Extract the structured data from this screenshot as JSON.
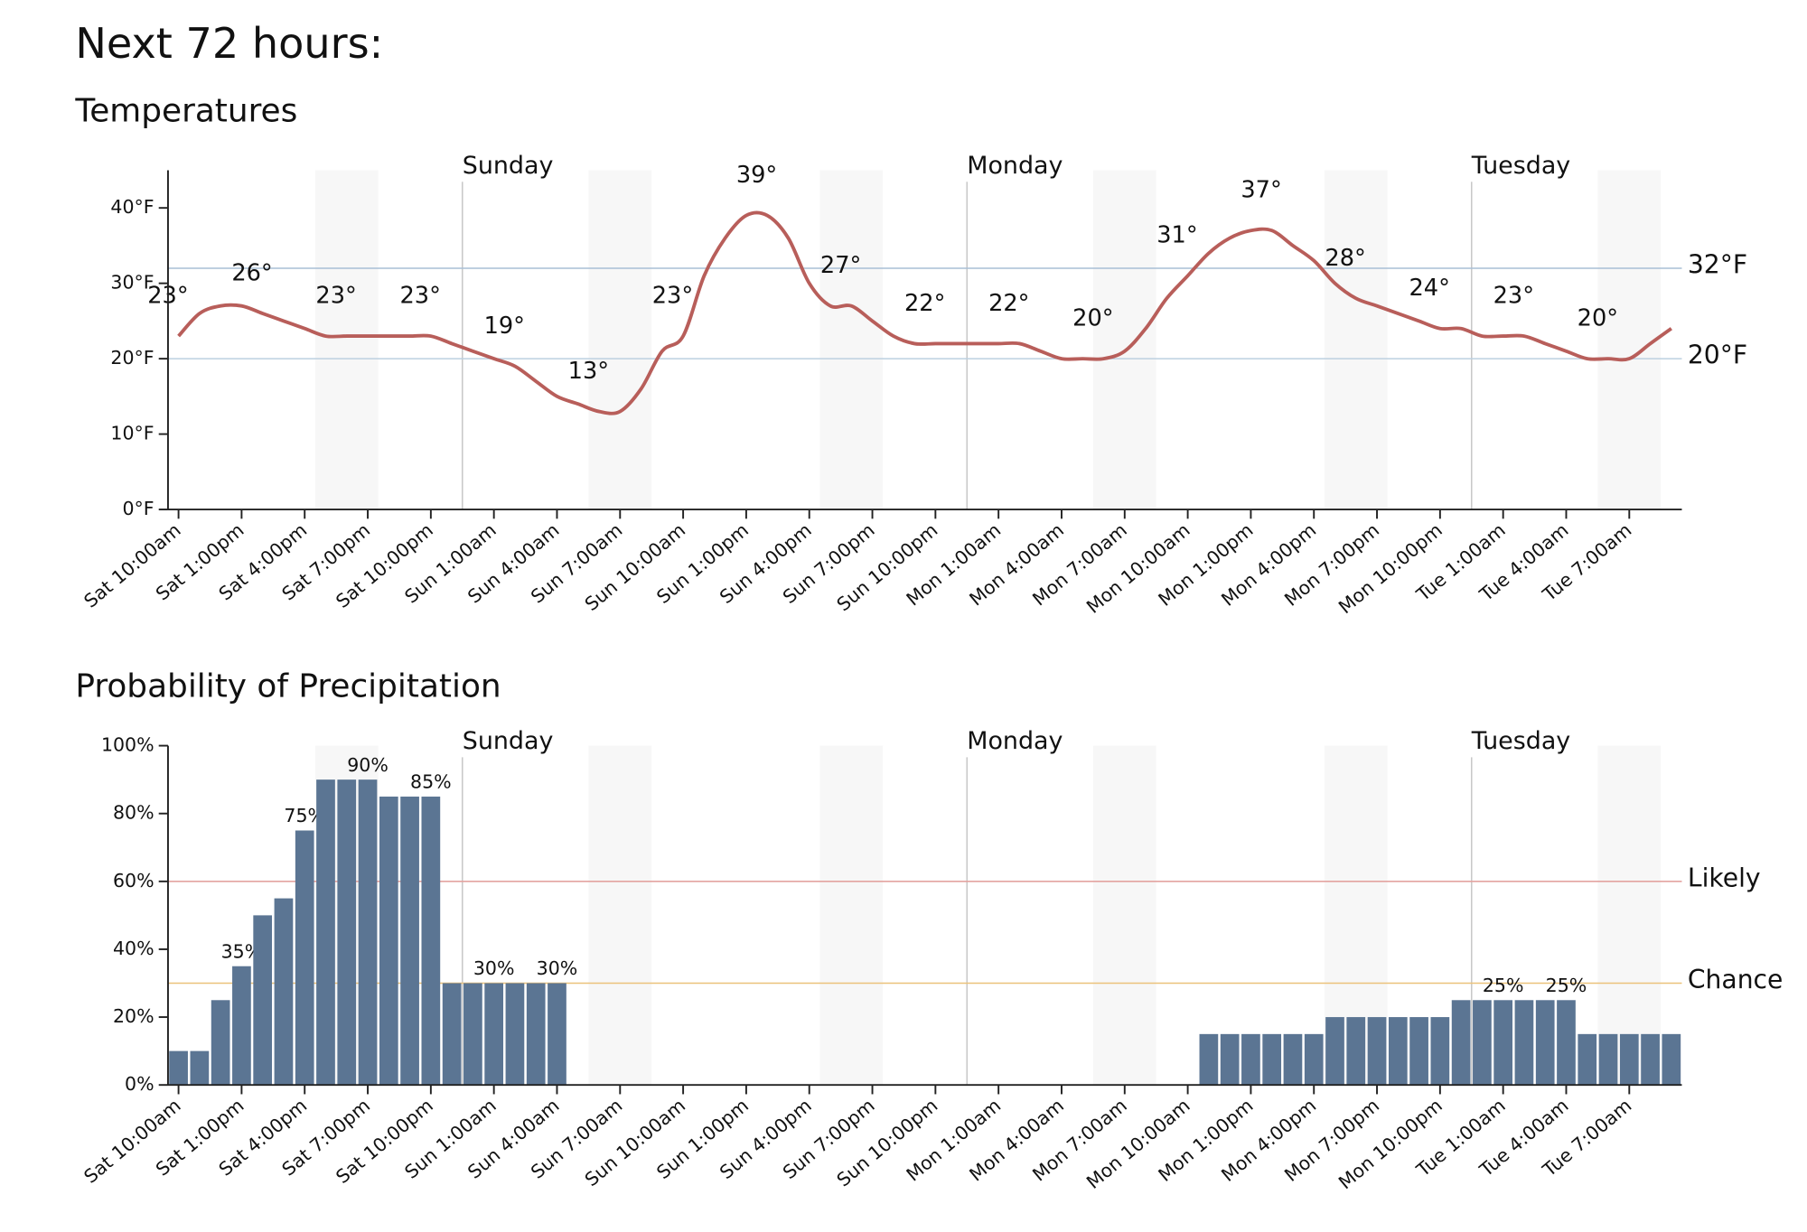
{
  "heading": "Next 72 hours:",
  "chart_data": [
    {
      "type": "line",
      "title": "Temperatures",
      "categories": [
        "Sat 10:00am",
        null,
        null,
        "Sat 1:00pm",
        null,
        null,
        "Sat 4:00pm",
        null,
        null,
        "Sat 7:00pm",
        null,
        null,
        "Sat 10:00pm",
        null,
        null,
        "Sun 1:00am",
        null,
        null,
        "Sun 4:00am",
        null,
        null,
        "Sun 7:00am",
        null,
        null,
        "Sun 10:00am",
        null,
        null,
        "Sun 1:00pm",
        null,
        null,
        "Sun 4:00pm",
        null,
        null,
        "Sun 7:00pm",
        null,
        null,
        "Sun 10:00pm",
        null,
        null,
        "Mon 1:00am",
        null,
        null,
        "Mon 4:00am",
        null,
        null,
        "Mon 7:00am",
        null,
        null,
        "Mon 10:00am",
        null,
        null,
        "Mon 1:00pm",
        null,
        null,
        "Mon 4:00pm",
        null,
        null,
        "Mon 7:00pm",
        null,
        null,
        "Mon 10:00pm",
        null,
        null,
        "Tue 1:00am",
        null,
        null,
        "Tue 4:00am",
        null,
        null,
        "Tue 7:00am",
        null,
        null
      ],
      "values": [
        23,
        26,
        27,
        27,
        26,
        25,
        24,
        23,
        23,
        23,
        23,
        23,
        23,
        22,
        21,
        20,
        19,
        17,
        15,
        14,
        13,
        13,
        16,
        21,
        23,
        31,
        36,
        39,
        39,
        36,
        30,
        27,
        27,
        25,
        23,
        22,
        22,
        22,
        22,
        22,
        22,
        21,
        20,
        20,
        20,
        21,
        24,
        28,
        31,
        34,
        36,
        37,
        37,
        35,
        33,
        30,
        28,
        27,
        26,
        25,
        24,
        24,
        23,
        23,
        23,
        22,
        21,
        20,
        20,
        20,
        22,
        24
      ],
      "value_labels": [
        "23°",
        null,
        null,
        null,
        "26°",
        null,
        null,
        null,
        "23°",
        null,
        null,
        null,
        "23°",
        null,
        null,
        null,
        "19°",
        null,
        null,
        null,
        "13°",
        null,
        null,
        null,
        "23°",
        null,
        null,
        null,
        "39°",
        null,
        null,
        null,
        "27°",
        null,
        null,
        null,
        "22°",
        null,
        null,
        null,
        "22°",
        null,
        null,
        null,
        "20°",
        null,
        null,
        null,
        "31°",
        null,
        null,
        null,
        "37°",
        null,
        null,
        null,
        "28°",
        null,
        null,
        null,
        "24°",
        null,
        null,
        null,
        "23°",
        null,
        null,
        null,
        "20°",
        null,
        null,
        null
      ],
      "color": "#b85e5a",
      "ylim": [
        0,
        45
      ],
      "yticks": [
        {
          "value": 0,
          "label": "0°F"
        },
        {
          "value": 10,
          "label": "10°F"
        },
        {
          "value": 20,
          "label": "20°F"
        },
        {
          "value": 30,
          "label": "30°F"
        },
        {
          "value": 40,
          "label": "40°F"
        }
      ],
      "reference_lines": [
        {
          "value": 32,
          "label": "32°F",
          "color": "#a9bfd6"
        },
        {
          "value": 20,
          "label": "20°F",
          "color": "#bcd0e0"
        }
      ],
      "day_lines": [
        {
          "label": "Sunday",
          "hour": 14
        },
        {
          "label": "Monday",
          "hour": 38
        },
        {
          "label": "Tuesday",
          "hour": 62
        }
      ],
      "shaded": [
        [
          7,
          10
        ],
        [
          20,
          23
        ],
        [
          31,
          34
        ],
        [
          44,
          47
        ],
        [
          55,
          58
        ],
        [
          68,
          71
        ]
      ]
    },
    {
      "type": "bar",
      "title": "Probability of Precipitation",
      "categories": [
        "Sat 10:00am",
        null,
        null,
        "Sat 1:00pm",
        null,
        null,
        "Sat 4:00pm",
        null,
        null,
        "Sat 7:00pm",
        null,
        null,
        "Sat 10:00pm",
        null,
        null,
        "Sun 1:00am",
        null,
        null,
        "Sun 4:00am",
        null,
        null,
        "Sun 7:00am",
        null,
        null,
        "Sun 10:00am",
        null,
        null,
        "Sun 1:00pm",
        null,
        null,
        "Sun 4:00pm",
        null,
        null,
        "Sun 7:00pm",
        null,
        null,
        "Sun 10:00pm",
        null,
        null,
        "Mon 1:00am",
        null,
        null,
        "Mon 4:00am",
        null,
        null,
        "Mon 7:00am",
        null,
        null,
        "Mon 10:00am",
        null,
        null,
        "Mon 1:00pm",
        null,
        null,
        "Mon 4:00pm",
        null,
        null,
        "Mon 7:00pm",
        null,
        null,
        "Mon 10:00pm",
        null,
        null,
        "Tue 1:00am",
        null,
        null,
        "Tue 4:00am",
        null,
        null,
        "Tue 7:00am",
        null,
        null
      ],
      "values": [
        10,
        10,
        25,
        35,
        50,
        55,
        75,
        90,
        90,
        90,
        85,
        85,
        85,
        30,
        30,
        30,
        30,
        30,
        30,
        0,
        0,
        0,
        0,
        0,
        0,
        0,
        0,
        0,
        0,
        0,
        0,
        0,
        0,
        0,
        0,
        0,
        0,
        0,
        0,
        0,
        0,
        0,
        0,
        0,
        0,
        0,
        0,
        0,
        0,
        15,
        15,
        15,
        15,
        15,
        15,
        20,
        20,
        20,
        20,
        20,
        20,
        25,
        25,
        25,
        25,
        25,
        25,
        15,
        15,
        15,
        15,
        15
      ],
      "value_labels": [
        null,
        null,
        null,
        "35%",
        null,
        null,
        "75%",
        null,
        null,
        "90%",
        null,
        null,
        "85%",
        null,
        null,
        "30%",
        null,
        null,
        "30%",
        null,
        null,
        null,
        null,
        null,
        null,
        null,
        null,
        null,
        null,
        null,
        null,
        null,
        null,
        null,
        null,
        null,
        null,
        null,
        null,
        null,
        null,
        null,
        null,
        null,
        null,
        null,
        null,
        null,
        null,
        null,
        null,
        null,
        null,
        null,
        null,
        null,
        null,
        null,
        null,
        null,
        null,
        null,
        null,
        "25%",
        null,
        null,
        "25%",
        null,
        null,
        null,
        null,
        null
      ],
      "color": "#5b7593",
      "ylim": [
        0,
        100
      ],
      "yticks": [
        {
          "value": 0,
          "label": "0%"
        },
        {
          "value": 20,
          "label": "20%"
        },
        {
          "value": 40,
          "label": "40%"
        },
        {
          "value": 60,
          "label": "60%"
        },
        {
          "value": 80,
          "label": "80%"
        },
        {
          "value": 100,
          "label": "100%"
        }
      ],
      "reference_lines": [
        {
          "value": 60,
          "label": "Likely",
          "color": "#e3a3a0"
        },
        {
          "value": 30,
          "label": "Chance",
          "color": "#ebc27a"
        }
      ],
      "day_lines": [
        {
          "label": "Sunday",
          "hour": 14
        },
        {
          "label": "Monday",
          "hour": 38
        },
        {
          "label": "Tuesday",
          "hour": 62
        }
      ],
      "shaded": [
        [
          7,
          10
        ],
        [
          20,
          23
        ],
        [
          31,
          34
        ],
        [
          44,
          47
        ],
        [
          55,
          58
        ],
        [
          68,
          71
        ]
      ]
    }
  ]
}
